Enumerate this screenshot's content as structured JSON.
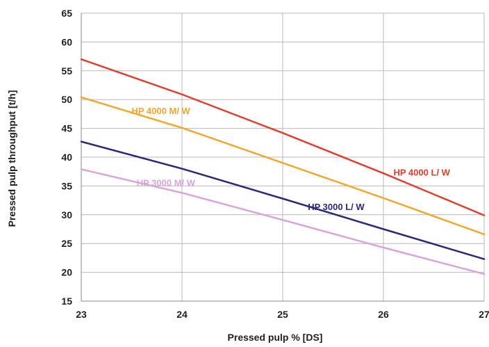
{
  "chart_data": {
    "type": "line",
    "title": "",
    "xlabel": "Pressed pulp % [DS]",
    "ylabel": "Pressed pulp throughput [t/h]",
    "xlim": [
      23,
      27
    ],
    "ylim": [
      15,
      65
    ],
    "x_ticks": [
      "23",
      "24",
      "25",
      "26",
      "27"
    ],
    "y_ticks": [
      "15",
      "20",
      "25",
      "30",
      "35",
      "40",
      "45",
      "50",
      "55",
      "60",
      "65"
    ],
    "grid": true,
    "legend": "none",
    "series": [
      {
        "name": "HP 4000 L/ W",
        "color": "#e04030",
        "x": [
          23,
          24,
          25,
          26,
          27
        ],
        "y": [
          57,
          50.9,
          44.2,
          37.2,
          29.9
        ],
        "label_at": [
          26.1,
          36.8
        ],
        "label_anchor": "start"
      },
      {
        "name": "HP 4000 M/ W",
        "color": "#f0a830",
        "x": [
          23,
          24,
          25,
          26,
          27
        ],
        "y": [
          50.4,
          45.1,
          39.0,
          32.9,
          26.6
        ],
        "label_at": [
          23.5,
          47.5
        ],
        "label_anchor": "start"
      },
      {
        "name": "HP 3000 L/ W",
        "color": "#2a2a78",
        "x": [
          23,
          24,
          25,
          26,
          27
        ],
        "y": [
          42.7,
          38.0,
          32.8,
          27.5,
          22.3
        ],
        "label_at": [
          25.25,
          30.8
        ],
        "label_anchor": "start"
      },
      {
        "name": "HP 3000 M/ W",
        "color": "#d8a6dc",
        "x": [
          23,
          24,
          25,
          26,
          27
        ],
        "y": [
          37.9,
          33.8,
          29.1,
          24.3,
          19.7
        ],
        "label_at": [
          23.55,
          35.0
        ],
        "label_anchor": "start"
      }
    ]
  }
}
